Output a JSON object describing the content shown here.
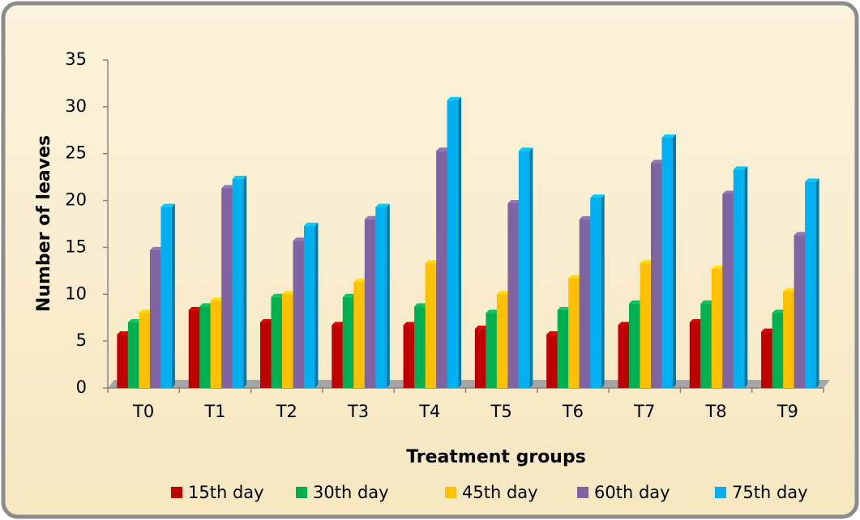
{
  "chart_data": {
    "type": "bar",
    "y_label": "Number of leaves",
    "x_label": "Treatment groups",
    "categories": [
      "T0",
      "T1",
      "T2",
      "T3",
      "T4",
      "T5",
      "T6",
      "T7",
      "T8",
      "T9"
    ],
    "series": [
      {
        "name": "15th day",
        "color": "#c00000",
        "values": [
          5.7,
          8.3,
          7.0,
          6.7,
          6.7,
          6.3,
          5.7,
          6.7,
          7.0,
          6.0
        ]
      },
      {
        "name": "30th day",
        "color": "#00b050",
        "values": [
          7.0,
          8.7,
          9.7,
          9.7,
          8.7,
          8.0,
          8.3,
          9.0,
          9.0,
          8.0
        ]
      },
      {
        "name": "45th day",
        "color": "#ffc000",
        "values": [
          8.0,
          9.3,
          10.0,
          11.3,
          13.3,
          10.0,
          11.7,
          13.3,
          12.7,
          10.3
        ]
      },
      {
        "name": "60th day",
        "color": "#8064a2",
        "values": [
          14.7,
          21.3,
          15.7,
          18.0,
          25.3,
          19.7,
          18.0,
          24.0,
          20.7,
          16.3
        ]
      },
      {
        "name": "75th day",
        "color": "#00b0f0",
        "values": [
          19.3,
          22.3,
          17.3,
          19.3,
          30.7,
          25.3,
          20.3,
          26.7,
          23.3,
          22.0
        ]
      }
    ],
    "ylim": [
      0,
      35
    ],
    "yticks": [
      0,
      5,
      10,
      15,
      20,
      25,
      30,
      35
    ],
    "legend": "bottom"
  }
}
